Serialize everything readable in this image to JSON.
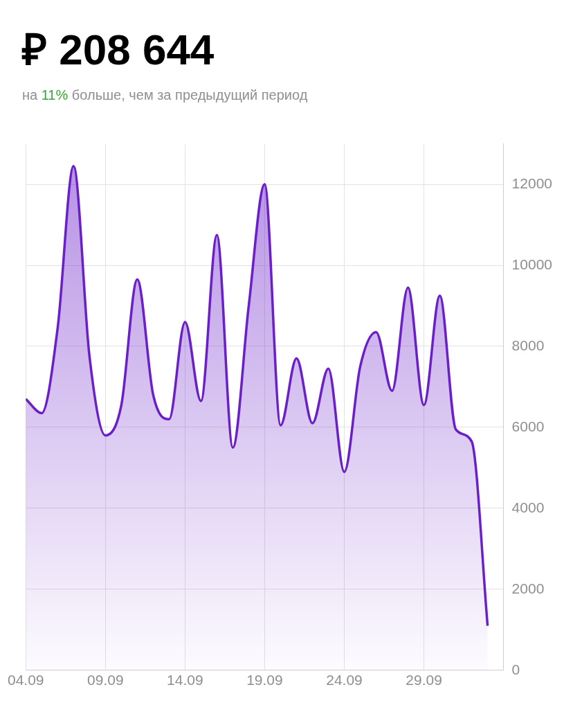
{
  "chart_data": {
    "type": "area",
    "title": "₽ 208 644",
    "subtitle": "на 11% больше, чем за предыдущий период",
    "x": [
      "--09-04",
      "--09-05",
      "--09-06",
      "--09-07",
      "--09-08",
      "--09-09",
      "--09-10",
      "--09-11",
      "--09-12",
      "--09-13",
      "--09-14",
      "--09-15",
      "--09-16",
      "--09-17",
      "--09-18",
      "--09-19",
      "--09-20",
      "--09-21",
      "--09-22",
      "--09-23",
      "--09-24",
      "--09-25",
      "--09-26",
      "--09-27",
      "--09-28",
      "--09-29",
      "--09-30",
      "--10-01",
      "--10-02",
      "--10-03"
    ],
    "series": [
      {
        "color": "#6a1fc8",
        "values": [
          6700,
          6350,
          8450,
          12450,
          7750,
          5800,
          6550,
          9650,
          6800,
          6200,
          8600,
          6650,
          10750,
          5500,
          9000,
          12000,
          6050,
          7700,
          6100,
          7450,
          4900,
          7500,
          8350,
          6900,
          9450,
          6550,
          9250,
          5950,
          5650,
          1100
        ]
      }
    ],
    "xlim": [
      "--09-04",
      "--10-04"
    ],
    "xticks": [
      {
        "value": "--09-04",
        "label": "04.09"
      },
      {
        "value": "--09-09",
        "label": "09.09"
      },
      {
        "value": "--09-14",
        "label": "14.09"
      },
      {
        "value": "--09-19",
        "label": "19.09"
      },
      {
        "value": "--09-24",
        "label": "24.09"
      },
      {
        "value": "--09-29",
        "label": "29.09"
      },
      {
        "value": "--10-04",
        "label": null
      }
    ],
    "ylim": [
      0,
      13000
    ],
    "yticks": [
      0,
      2000,
      4000,
      6000,
      8000,
      10000,
      12000
    ],
    "grid": true,
    "legend": false
  }
}
